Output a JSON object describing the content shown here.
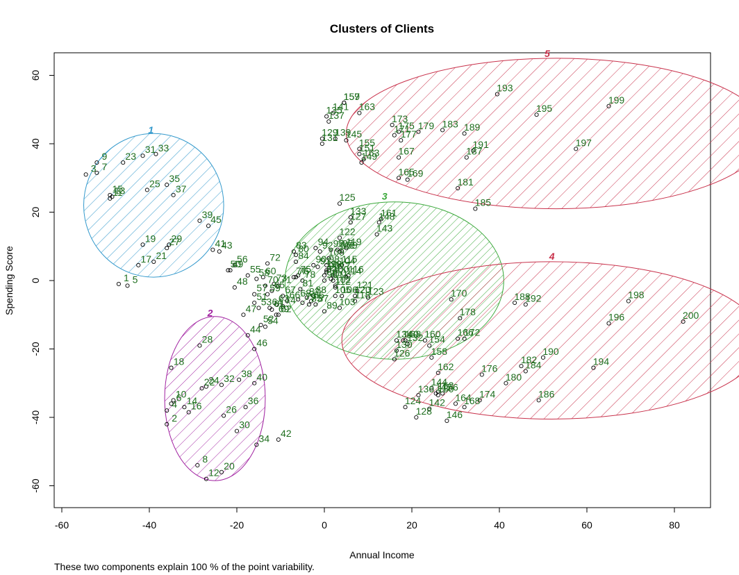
{
  "chart_data": {
    "type": "scatter",
    "title": "Clusters of Clients",
    "xlabel": "Annual Income",
    "ylabel": "Spending Score",
    "caption": "These two components explain 100 % of the point variability.",
    "xlim": [
      -60,
      80
    ],
    "ylim": [
      -60,
      60
    ],
    "xticks": [
      -60,
      -40,
      -20,
      0,
      20,
      40,
      60,
      80
    ],
    "yticks": [
      -60,
      -40,
      -20,
      0,
      20,
      40,
      60
    ],
    "grid": false,
    "clusters": [
      {
        "name": "1",
        "center": [
          -39,
          22
        ],
        "rx": 16,
        "ry": 21,
        "color": "#3399cc"
      },
      {
        "name": "2",
        "center": [
          -25,
          -34.5
        ],
        "rx": 11.5,
        "ry": 24,
        "color": "#a020a0"
      },
      {
        "name": "3",
        "center": [
          16,
          0
        ],
        "rx": 25,
        "ry": 23,
        "color": "#3aa83a"
      },
      {
        "name": "4",
        "center": [
          52,
          -17.5
        ],
        "rx": 48,
        "ry": 23,
        "color": "#c8304a"
      },
      {
        "name": "5",
        "center": [
          53,
          43
        ],
        "rx": 48,
        "ry": 22,
        "color": "#c8304a"
      }
    ],
    "label_color": "#1e6e1e",
    "points": [
      {
        "label": "1",
        "x": -47,
        "y": -1
      },
      {
        "label": "3",
        "x": -54.5,
        "y": 31
      },
      {
        "label": "5",
        "x": -45,
        "y": -1.5
      },
      {
        "label": "7",
        "x": -52,
        "y": 31.5
      },
      {
        "label": "9",
        "x": -52,
        "y": 34.5
      },
      {
        "label": "10",
        "x": -34.5,
        "y": -35
      },
      {
        "label": "4",
        "x": -36,
        "y": -38
      },
      {
        "label": "6",
        "x": -35,
        "y": -36
      },
      {
        "label": "2",
        "x": -36,
        "y": -42
      },
      {
        "label": "8",
        "x": -29,
        "y": -54
      },
      {
        "label": "12",
        "x": -27,
        "y": -58
      },
      {
        "label": "13",
        "x": -48.5,
        "y": 24.5
      },
      {
        "label": "11",
        "x": -49,
        "y": 24
      },
      {
        "label": "14",
        "x": -32,
        "y": -37
      },
      {
        "label": "15",
        "x": -49,
        "y": 25
      },
      {
        "label": "16",
        "x": -31,
        "y": -38.5
      },
      {
        "label": "17",
        "x": -42.5,
        "y": 4.5
      },
      {
        "label": "18",
        "x": -35,
        "y": -25.5
      },
      {
        "label": "19",
        "x": -41.5,
        "y": 10.5
      },
      {
        "label": "20",
        "x": -23.5,
        "y": -56
      },
      {
        "label": "21",
        "x": -39,
        "y": 5.5
      },
      {
        "label": "22",
        "x": -28,
        "y": -31.5
      },
      {
        "label": "23",
        "x": -46,
        "y": 34.5
      },
      {
        "label": "24",
        "x": -27,
        "y": -31
      },
      {
        "label": "25",
        "x": -40.5,
        "y": 26.5
      },
      {
        "label": "26",
        "x": -23,
        "y": -39.5
      },
      {
        "label": "27",
        "x": -36,
        "y": 9.5
      },
      {
        "label": "28",
        "x": -28.5,
        "y": -19
      },
      {
        "label": "29",
        "x": -35.5,
        "y": 10.5
      },
      {
        "label": "30",
        "x": -20,
        "y": -44
      },
      {
        "label": "31",
        "x": -41.5,
        "y": 36.5
      },
      {
        "label": "32",
        "x": -23.5,
        "y": -30.5
      },
      {
        "label": "33",
        "x": -38.5,
        "y": 37
      },
      {
        "label": "34",
        "x": -15.5,
        "y": -48
      },
      {
        "label": "35",
        "x": -36,
        "y": 28
      },
      {
        "label": "36",
        "x": -18,
        "y": -37
      },
      {
        "label": "37",
        "x": -34.5,
        "y": 25
      },
      {
        "label": "38",
        "x": -19.5,
        "y": -29
      },
      {
        "label": "39",
        "x": -28.5,
        "y": 17.5
      },
      {
        "label": "40",
        "x": -16,
        "y": -30
      },
      {
        "label": "41",
        "x": -25.5,
        "y": 9
      },
      {
        "label": "42",
        "x": -10.5,
        "y": -46.5
      },
      {
        "label": "43",
        "x": -24,
        "y": 8.5
      },
      {
        "label": "44",
        "x": -17.5,
        "y": -16
      },
      {
        "label": "45",
        "x": -26.5,
        "y": 16
      },
      {
        "label": "46",
        "x": -16,
        "y": -20
      },
      {
        "label": "47",
        "x": -18.5,
        "y": -10
      },
      {
        "label": "48",
        "x": -20.5,
        "y": -2
      },
      {
        "label": "49",
        "x": -21.5,
        "y": 3
      },
      {
        "label": "50",
        "x": -22,
        "y": 3
      },
      {
        "label": "51",
        "x": -16,
        "y": -6.5
      },
      {
        "label": "52",
        "x": -14.5,
        "y": -13
      },
      {
        "label": "53",
        "x": -15,
        "y": -8
      },
      {
        "label": "54",
        "x": -13.5,
        "y": -13.5
      },
      {
        "label": "55",
        "x": -17.5,
        "y": 1.5
      },
      {
        "label": "56",
        "x": -20.5,
        "y": 4.5
      },
      {
        "label": "57",
        "x": -16,
        "y": -4
      },
      {
        "label": "58",
        "x": -15.5,
        "y": 0.5
      },
      {
        "label": "59",
        "x": -13,
        "y": -4
      },
      {
        "label": "60",
        "x": -14,
        "y": 1
      },
      {
        "label": "61",
        "x": -12,
        "y": -8.5
      },
      {
        "label": "62",
        "x": -10.5,
        "y": -10
      },
      {
        "label": "63",
        "x": -11,
        "y": -7
      },
      {
        "label": "64",
        "x": -12.5,
        "y": -8
      },
      {
        "label": "65",
        "x": -12,
        "y": -3
      },
      {
        "label": "66",
        "x": -8.5,
        "y": -6
      },
      {
        "label": "67",
        "x": -9.5,
        "y": -4.5
      },
      {
        "label": "68",
        "x": -6,
        "y": -5.5
      },
      {
        "label": "69",
        "x": -11,
        "y": -10
      },
      {
        "label": "70",
        "x": -13.5,
        "y": -1.5
      },
      {
        "label": "71",
        "x": -10.5,
        "y": -1.5
      },
      {
        "label": "72",
        "x": -13,
        "y": 5
      },
      {
        "label": "73",
        "x": -11.5,
        "y": -1
      },
      {
        "label": "74",
        "x": -9.5,
        "y": -7.5
      },
      {
        "label": "75",
        "x": -6,
        "y": 1.5
      },
      {
        "label": "76",
        "x": -6.5,
        "y": 1
      },
      {
        "label": "77",
        "x": -7,
        "y": 1
      },
      {
        "label": "78",
        "x": -5,
        "y": 0
      },
      {
        "label": "79",
        "x": -5,
        "y": -6.5
      },
      {
        "label": "80",
        "x": -6.5,
        "y": 7.5
      },
      {
        "label": "81",
        "x": -5.5,
        "y": -2.5
      },
      {
        "label": "82",
        "x": -4,
        "y": -5
      },
      {
        "label": "83",
        "x": -7,
        "y": 8.5
      },
      {
        "label": "84",
        "x": -6.5,
        "y": 5.5
      },
      {
        "label": "85",
        "x": -3.5,
        "y": -7
      },
      {
        "label": "86",
        "x": -3,
        "y": -6
      },
      {
        "label": "87",
        "x": -2,
        "y": -7
      },
      {
        "label": "88",
        "x": -2.5,
        "y": -4.5
      },
      {
        "label": "89",
        "x": 0,
        "y": -9
      },
      {
        "label": "90",
        "x": -2.5,
        "y": 4.5
      },
      {
        "label": "91",
        "x": -1.5,
        "y": 4
      },
      {
        "label": "92",
        "x": -1,
        "y": 8.5
      },
      {
        "label": "93",
        "x": 0,
        "y": 1.5
      },
      {
        "label": "94",
        "x": -2,
        "y": 9.5
      },
      {
        "label": "95",
        "x": 0.5,
        "y": 2.5
      },
      {
        "label": "96",
        "x": 0,
        "y": 0
      },
      {
        "label": "97",
        "x": 1.5,
        "y": 9
      },
      {
        "label": "98",
        "x": 0.5,
        "y": 4.5
      },
      {
        "label": "99",
        "x": 1,
        "y": 3
      },
      {
        "label": "100",
        "x": 2,
        "y": 1.5
      },
      {
        "label": "101",
        "x": 3.5,
        "y": 8.5
      },
      {
        "label": "102",
        "x": 2.5,
        "y": -1.5
      },
      {
        "label": "103",
        "x": 3.5,
        "y": -8
      },
      {
        "label": "104",
        "x": 3.5,
        "y": 4
      },
      {
        "label": "105",
        "x": 2.5,
        "y": -4.5
      },
      {
        "label": "106",
        "x": 4,
        "y": -4.5
      },
      {
        "label": "107",
        "x": 3,
        "y": 9
      },
      {
        "label": "108",
        "x": 1,
        "y": 6.5
      },
      {
        "label": "109",
        "x": 4,
        "y": 8.5
      },
      {
        "label": "110",
        "x": 1.5,
        "y": 0.5
      },
      {
        "label": "111",
        "x": 2,
        "y": 0
      },
      {
        "label": "112",
        "x": 2.5,
        "y": -2
      },
      {
        "label": "113",
        "x": 0.5,
        "y": 3
      },
      {
        "label": "114",
        "x": 5,
        "y": 1
      },
      {
        "label": "115",
        "x": 4,
        "y": 4.5
      },
      {
        "label": "116",
        "x": 5.5,
        "y": 1.5
      },
      {
        "label": "117",
        "x": 2.5,
        "y": 2.5
      },
      {
        "label": "118",
        "x": 7,
        "y": -6
      },
      {
        "label": "119",
        "x": 5,
        "y": 9.5
      },
      {
        "label": "120",
        "x": 7,
        "y": -4.5
      },
      {
        "label": "121",
        "x": 7.5,
        "y": -3
      },
      {
        "label": "122",
        "x": 3.5,
        "y": 12.5
      },
      {
        "label": "123",
        "x": 10,
        "y": -5
      },
      {
        "label": "124",
        "x": 18.5,
        "y": -37
      },
      {
        "label": "125",
        "x": 3.5,
        "y": 22.5
      },
      {
        "label": "126",
        "x": 16,
        "y": -23
      },
      {
        "label": "127",
        "x": 6,
        "y": 17
      },
      {
        "label": "128",
        "x": 21,
        "y": -40
      },
      {
        "label": "129",
        "x": -0.5,
        "y": 41.5
      },
      {
        "label": "130",
        "x": 16.5,
        "y": -20.5
      },
      {
        "label": "131",
        "x": -0.5,
        "y": 40
      },
      {
        "label": "132",
        "x": 19,
        "y": -18.5
      },
      {
        "label": "133",
        "x": 6,
        "y": 18.5
      },
      {
        "label": "134",
        "x": 16.5,
        "y": -17.5
      },
      {
        "label": "135",
        "x": 0.5,
        "y": 48
      },
      {
        "label": "136",
        "x": 21.5,
        "y": -33.5
      },
      {
        "label": "137",
        "x": 1,
        "y": 46.5
      },
      {
        "label": "138",
        "x": 18.5,
        "y": -17.5
      },
      {
        "label": "139",
        "x": 2.5,
        "y": 41.5
      },
      {
        "label": "140",
        "x": 18,
        "y": -17.5
      },
      {
        "label": "141",
        "x": 2,
        "y": 49
      },
      {
        "label": "142",
        "x": 24,
        "y": -37.5
      },
      {
        "label": "143",
        "x": 12,
        "y": 13.5
      },
      {
        "label": "144",
        "x": 24.5,
        "y": -31.5
      },
      {
        "label": "145",
        "x": 5,
        "y": 41
      },
      {
        "label": "146",
        "x": 28,
        "y": -41
      },
      {
        "label": "147",
        "x": 25.5,
        "y": -33
      },
      {
        "label": "148",
        "x": 12.5,
        "y": 17
      },
      {
        "label": "149",
        "x": 8.5,
        "y": 34.5
      },
      {
        "label": "150",
        "x": 26,
        "y": -33.5
      },
      {
        "label": "151",
        "x": 8,
        "y": 37
      },
      {
        "label": "152",
        "x": 26,
        "y": -32.5
      },
      {
        "label": "153",
        "x": 9,
        "y": 35.5
      },
      {
        "label": "154",
        "x": 24,
        "y": -19
      },
      {
        "label": "155",
        "x": 8,
        "y": 38.5
      },
      {
        "label": "156",
        "x": 27,
        "y": -33
      },
      {
        "label": "157",
        "x": 4.5,
        "y": 52
      },
      {
        "label": "158",
        "x": 24.5,
        "y": -22.5
      },
      {
        "label": "159",
        "x": 4.5,
        "y": 52
      },
      {
        "label": "160",
        "x": 23,
        "y": -17.5
      },
      {
        "label": "161",
        "x": 13,
        "y": 18
      },
      {
        "label": "162",
        "x": 26,
        "y": -27
      },
      {
        "label": "163",
        "x": 8,
        "y": 49
      },
      {
        "label": "164",
        "x": 30,
        "y": -36
      },
      {
        "label": "165",
        "x": 17,
        "y": 30
      },
      {
        "label": "166",
        "x": 30.5,
        "y": -17
      },
      {
        "label": "167",
        "x": 17,
        "y": 36
      },
      {
        "label": "168",
        "x": 32,
        "y": -37
      },
      {
        "label": "169",
        "x": 19,
        "y": 29.5
      },
      {
        "label": "170",
        "x": 29,
        "y": -5.5
      },
      {
        "label": "171",
        "x": 16,
        "y": 42.5
      },
      {
        "label": "172",
        "x": 32,
        "y": -17
      },
      {
        "label": "173",
        "x": 15.5,
        "y": 45.5
      },
      {
        "label": "174",
        "x": 35.5,
        "y": -35
      },
      {
        "label": "175",
        "x": 17,
        "y": 43.5
      },
      {
        "label": "176",
        "x": 36,
        "y": -27.5
      },
      {
        "label": "177",
        "x": 17.5,
        "y": 41
      },
      {
        "label": "178",
        "x": 31,
        "y": -11
      },
      {
        "label": "179",
        "x": 21.5,
        "y": 43.5
      },
      {
        "label": "180",
        "x": 41.5,
        "y": -30
      },
      {
        "label": "181",
        "x": 30.5,
        "y": 27
      },
      {
        "label": "182",
        "x": 45,
        "y": -25
      },
      {
        "label": "183",
        "x": 27,
        "y": 44
      },
      {
        "label": "184",
        "x": 46,
        "y": -26.5
      },
      {
        "label": "185",
        "x": 34.5,
        "y": 21
      },
      {
        "label": "186",
        "x": 49,
        "y": -35
      },
      {
        "label": "187",
        "x": 32.5,
        "y": 36
      },
      {
        "label": "188",
        "x": 43.5,
        "y": -6.5
      },
      {
        "label": "189",
        "x": 32,
        "y": 43
      },
      {
        "label": "190",
        "x": 50,
        "y": -22.5
      },
      {
        "label": "191",
        "x": 34,
        "y": 38
      },
      {
        "label": "192",
        "x": 46,
        "y": -7
      },
      {
        "label": "193",
        "x": 39.5,
        "y": 54.5
      },
      {
        "label": "194",
        "x": 61.5,
        "y": -25.5
      },
      {
        "label": "195",
        "x": 48.5,
        "y": 48.5
      },
      {
        "label": "196",
        "x": 65,
        "y": -12.5
      },
      {
        "label": "197",
        "x": 57.5,
        "y": 38.5
      },
      {
        "label": "198",
        "x": 69.5,
        "y": -6
      },
      {
        "label": "199",
        "x": 65,
        "y": 51
      },
      {
        "label": "200",
        "x": 82,
        "y": -12
      }
    ]
  }
}
